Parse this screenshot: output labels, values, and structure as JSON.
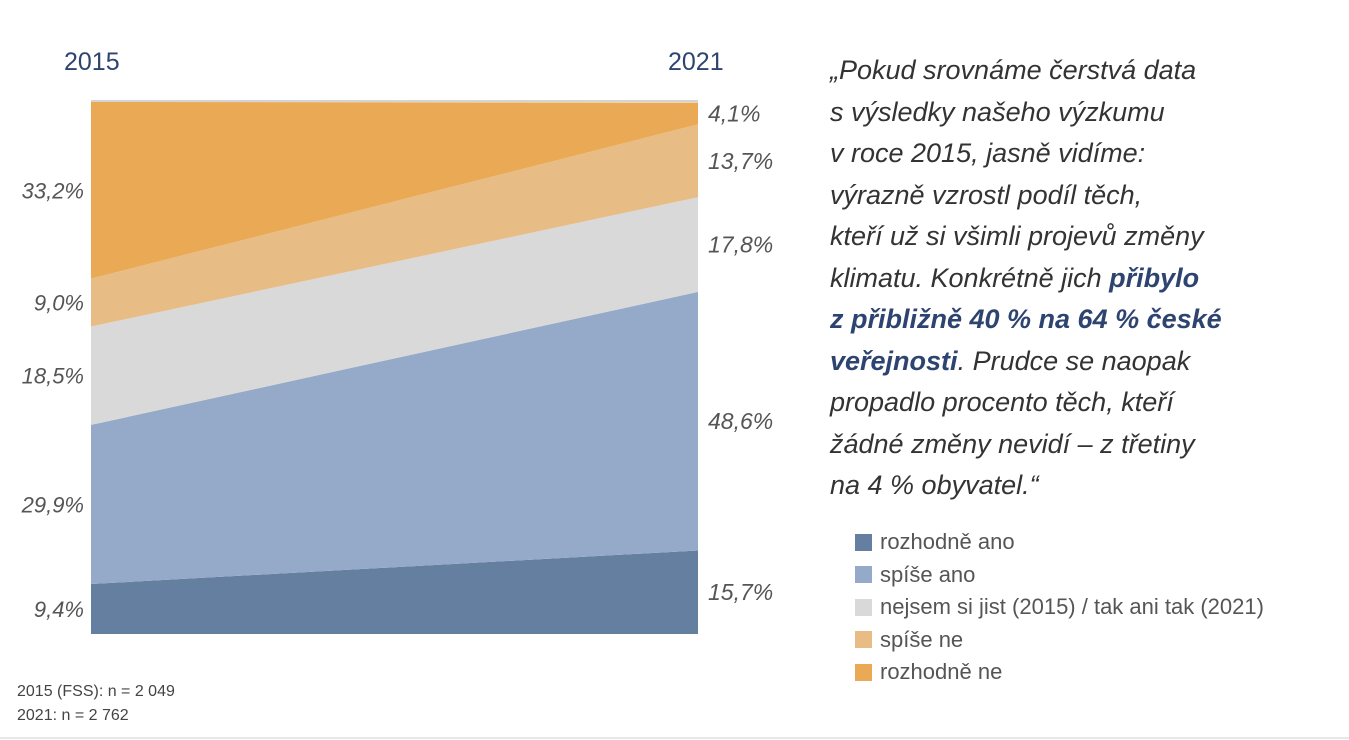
{
  "chart_data": {
    "type": "area",
    "x": [
      "2015",
      "2021"
    ],
    "series": [
      {
        "name": "rozhodně ano",
        "values": [
          9.4,
          15.7
        ],
        "labels": [
          "9,4%",
          "15,7%"
        ],
        "color": "#647f9f"
      },
      {
        "name": "spíše ano",
        "values": [
          29.9,
          48.6
        ],
        "labels": [
          "29,9%",
          "48,6%"
        ],
        "color": "#95a9c9"
      },
      {
        "name": "nejsem si jist (2015) / tak ani tak (2021)",
        "values": [
          18.5,
          17.8
        ],
        "labels": [
          "18,5%",
          "17,8%"
        ],
        "color": "#d9d9d9"
      },
      {
        "name": "spíše ne",
        "values": [
          9.0,
          13.7
        ],
        "labels": [
          "9,0%",
          "13,7%"
        ],
        "color": "#e8bc85"
      },
      {
        "name": "rozhodně ne",
        "values": [
          33.2,
          4.1
        ],
        "labels": [
          "33,2%",
          "4,1%"
        ],
        "color": "#eaa955"
      }
    ],
    "stacked": true,
    "ylim": [
      0,
      100
    ],
    "grid": false,
    "legend_position": "right"
  },
  "years": {
    "left": "2015",
    "right": "2021"
  },
  "quote": {
    "part1": "„Pokud srovnáme čerstvá data\ns výsledky našeho výzkumu\nv roce 2015, jasně vidíme:\nvýrazně vzrostl podíl těch,\nkteří už si všimli projevů změny\nklimatu. Konkrétně jich ",
    "highlight": "přibylo\nz přibližně 40 % na 64 %  české\nveřejnosti",
    "part2": ". Prudce se naopak\npropadlo procento těch, kteří\nžádné změny nevidí – z třetiny\nna 4 % obyvatel.“"
  },
  "footnote": {
    "line1": "2015 (FSS): n = 2 049",
    "line2": "2021: n = 2 762"
  }
}
